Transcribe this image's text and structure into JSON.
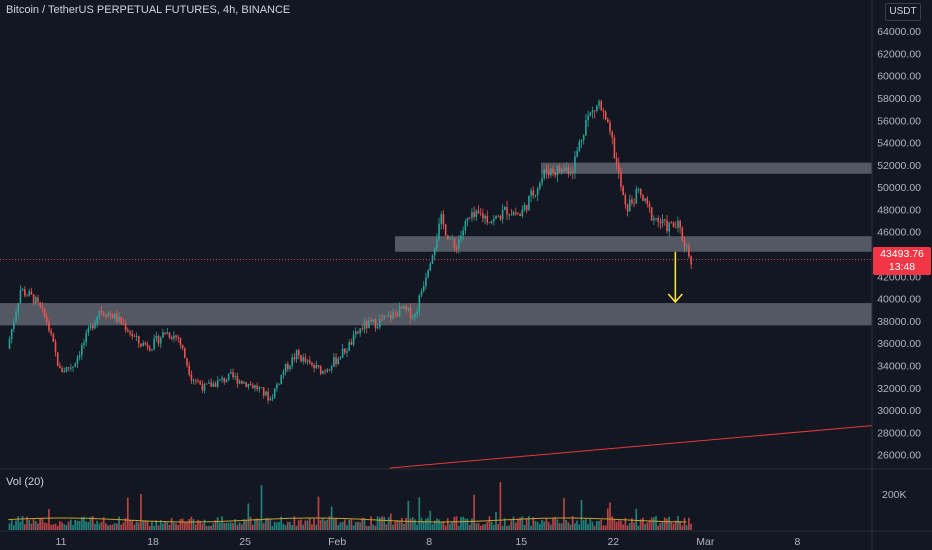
{
  "header": {
    "symbol_title": "Bitcoin / TetherUS PERPETUAL FUTURES, 4h, BINANCE",
    "currency": "USDT"
  },
  "volume_indicator": {
    "label": "Vol (20)",
    "axis_label": "200K"
  },
  "last_price": {
    "price": "43493.76",
    "countdown": "13:48",
    "color": "#f23645"
  },
  "colors": {
    "background": "#131722",
    "up_candle": "#26a69a",
    "down_candle": "#ef5350",
    "zone": "#8a8e99",
    "arrow": "#ffeb3b",
    "trendline": "#e53935",
    "volume_ma": "#c9a227"
  },
  "chart_data": {
    "type": "candlestick",
    "title": "Bitcoin / TetherUS PERPETUAL FUTURES, 4h, BINANCE",
    "y_axis": {
      "ticks": [
        "64000.00",
        "62000.00",
        "60000.00",
        "58000.00",
        "56000.00",
        "54000.00",
        "52000.00",
        "50000.00",
        "48000.00",
        "46000.00",
        "44000.00",
        "42000.00",
        "40000.00",
        "38000.00",
        "36000.00",
        "34000.00",
        "32000.00",
        "30000.00",
        "28000.00",
        "26000.00"
      ],
      "range": [
        24800,
        65000
      ]
    },
    "x_axis": {
      "ticks": [
        "11",
        "18",
        "25",
        "Feb",
        "8",
        "15",
        "22",
        "Mar",
        "8"
      ]
    },
    "price_path": [
      [
        "Jan 07",
        35500
      ],
      [
        "Jan 08",
        40800
      ],
      [
        "Jan 09",
        40000
      ],
      [
        "Jan 10",
        38000
      ],
      [
        "Jan 11",
        33500
      ],
      [
        "Jan 12",
        34000
      ],
      [
        "Jan 13",
        36500
      ],
      [
        "Jan 14",
        39000
      ],
      [
        "Jan 15",
        38500
      ],
      [
        "Jan 16",
        37500
      ],
      [
        "Jan 17",
        36000
      ],
      [
        "Jan 18",
        35800
      ],
      [
        "Jan 19",
        37000
      ],
      [
        "Jan 20",
        36500
      ],
      [
        "Jan 21",
        33000
      ],
      [
        "Jan 22",
        32000
      ],
      [
        "Jan 23",
        32500
      ],
      [
        "Jan 24",
        33000
      ],
      [
        "Jan 25",
        32500
      ],
      [
        "Jan 26",
        32000
      ],
      [
        "Jan 27",
        31000
      ],
      [
        "Jan 28",
        33500
      ],
      [
        "Jan 29",
        35000
      ],
      [
        "Jan 30",
        34000
      ],
      [
        "Jan 31",
        33500
      ],
      [
        "Feb 01",
        34500
      ],
      [
        "Feb 02",
        35800
      ],
      [
        "Feb 03",
        37500
      ],
      [
        "Feb 04",
        37800
      ],
      [
        "Feb 05",
        38300
      ],
      [
        "Feb 06",
        39000
      ],
      [
        "Feb 07",
        38500
      ],
      [
        "Feb 08",
        43000
      ],
      [
        "Feb 09",
        47000
      ],
      [
        "Feb 10",
        44500
      ],
      [
        "Feb 11",
        47000
      ],
      [
        "Feb 12",
        47500
      ],
      [
        "Feb 13",
        47000
      ],
      [
        "Feb 14",
        48000
      ],
      [
        "Feb 15",
        47500
      ],
      [
        "Feb 16",
        49500
      ],
      [
        "Feb 17",
        51500
      ],
      [
        "Feb 18",
        51500
      ],
      [
        "Feb 19",
        51800
      ],
      [
        "Feb 20",
        56000
      ],
      [
        "Feb 21",
        57500
      ],
      [
        "Feb 22",
        54000
      ],
      [
        "Feb 23",
        48000
      ],
      [
        "Feb 24",
        49500
      ],
      [
        "Feb 25",
        47500
      ],
      [
        "Feb 26",
        46500
      ],
      [
        "Feb 27",
        46500
      ],
      [
        "Feb 28",
        43494
      ]
    ],
    "horizontal_zones": [
      {
        "y_range": [
          51200,
          52200
        ]
      },
      {
        "y_range": [
          44200,
          45600
        ]
      },
      {
        "y_range": [
          37600,
          39600
        ]
      }
    ],
    "trendline": {
      "from": [
        "Feb 05",
        24800
      ],
      "to": [
        "Mar 11",
        28600
      ]
    },
    "arrow": {
      "at": "Mar 01",
      "from_price": 44200,
      "to_price": 39700
    },
    "last_price": 43493.76
  }
}
